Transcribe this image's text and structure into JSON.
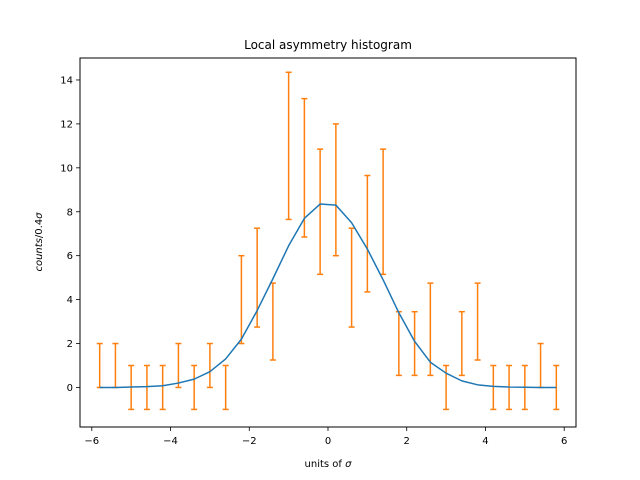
{
  "chart_data": {
    "type": "line",
    "title": "Local asymmetry histogram",
    "xlabel_text": "units of ",
    "xlabel_symbol": "σ",
    "ylabel_italic": "counts",
    "ylabel_rest": "/0.4",
    "ylabel_symbol": "σ",
    "xlim": [
      -6.3,
      6.3
    ],
    "ylim": [
      -1.8,
      15.0
    ],
    "x_ticks": [
      -6,
      -4,
      -2,
      0,
      2,
      4,
      6
    ],
    "x_tick_labels": [
      "−6",
      "−4",
      "−2",
      "0",
      "2",
      "4",
      "6"
    ],
    "y_ticks": [
      0,
      2,
      4,
      6,
      8,
      10,
      12,
      14
    ],
    "y_tick_labels": [
      "0",
      "2",
      "4",
      "6",
      "8",
      "10",
      "12",
      "14"
    ],
    "grid": false,
    "curve_color": "#1f77b4",
    "errorbar_color": "#ff7f0e",
    "curve": {
      "x": [
        -5.8,
        -5.4,
        -5.0,
        -4.6,
        -4.2,
        -3.8,
        -3.4,
        -3.0,
        -2.6,
        -2.2,
        -1.8,
        -1.4,
        -1.0,
        -0.6,
        -0.2,
        0.2,
        0.6,
        1.0,
        1.4,
        1.8,
        2.2,
        2.6,
        3.0,
        3.4,
        3.8,
        4.2,
        4.6,
        5.0,
        5.4,
        5.8
      ],
      "y": [
        0.0,
        0.0,
        0.02,
        0.04,
        0.08,
        0.2,
        0.38,
        0.72,
        1.3,
        2.2,
        3.5,
        4.95,
        6.45,
        7.7,
        8.35,
        8.3,
        7.5,
        6.3,
        4.9,
        3.4,
        2.1,
        1.15,
        0.65,
        0.3,
        0.12,
        0.05,
        0.02,
        0.01,
        0.0,
        0.0
      ]
    },
    "errorbars": {
      "x": [
        -5.8,
        -5.4,
        -5.0,
        -4.6,
        -4.2,
        -3.8,
        -3.4,
        -3.0,
        -2.6,
        -2.2,
        -1.8,
        -1.4,
        -1.0,
        -0.6,
        -0.2,
        0.2,
        0.6,
        1.0,
        1.4,
        1.8,
        2.2,
        2.6,
        3.0,
        3.4,
        3.8,
        4.2,
        4.6,
        5.0,
        5.4,
        5.8
      ],
      "low": [
        0,
        0,
        -1,
        -1,
        -1,
        0,
        -1,
        0,
        -1,
        2.0,
        2.75,
        1.25,
        7.65,
        6.85,
        5.15,
        6.0,
        2.75,
        4.35,
        5.15,
        0.55,
        0.55,
        0.55,
        -1,
        0.55,
        1.25,
        -1,
        -1,
        -1,
        0,
        -1
      ],
      "high": [
        2,
        2,
        1,
        1,
        1,
        2,
        1,
        2,
        1,
        6.0,
        7.25,
        4.75,
        14.35,
        13.15,
        10.85,
        12.0,
        7.25,
        9.65,
        10.85,
        3.45,
        3.45,
        4.75,
        1,
        3.45,
        4.75,
        1,
        1,
        1,
        2,
        1
      ]
    }
  }
}
